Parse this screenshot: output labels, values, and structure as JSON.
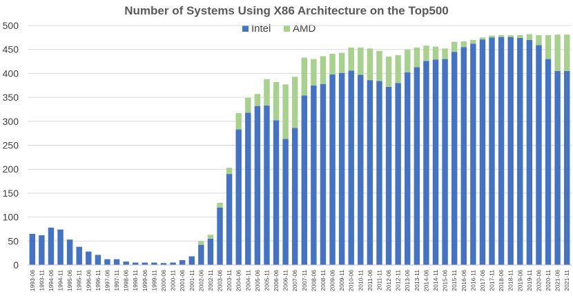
{
  "chart_data": {
    "type": "bar",
    "stacked": true,
    "title": "Number of Systems Using X86 Architecture on the Top500",
    "xlabel": "",
    "ylabel": "",
    "ylim": [
      0,
      500
    ],
    "yticks": [
      0,
      50,
      100,
      150,
      200,
      250,
      300,
      350,
      400,
      450,
      500
    ],
    "grid": true,
    "legend_position": "top-center",
    "categories": [
      "1993-06",
      "1993-11",
      "1994-06",
      "1994-11",
      "1995-06",
      "1995-11",
      "1996-06",
      "1996-11",
      "1997-06",
      "1997-11",
      "1998-06",
      "1998-11",
      "1999-06",
      "1999-11",
      "2000-06",
      "2000-11",
      "2001-06",
      "2001-11",
      "2002-06",
      "2002-11",
      "2003-06",
      "2003-11",
      "2004-06",
      "2004-11",
      "2005-06",
      "2005-11",
      "2006-06",
      "2006-11",
      "2007-06",
      "2007-11",
      "2008-06",
      "2008-11",
      "2009-06",
      "2009-11",
      "2010-06",
      "2010-11",
      "2011-06",
      "2011-11",
      "2012-06",
      "2012-11",
      "2013-06",
      "2013-11",
      "2014-06",
      "2014-11",
      "2015-06",
      "2015-11",
      "2016-06",
      "2016-11",
      "2017-06",
      "2017-11",
      "2018-06",
      "2018-11",
      "2019-06",
      "2019-11",
      "2020-06",
      "2020-11",
      "2021-06",
      "2021-11"
    ],
    "series": [
      {
        "name": "Intel",
        "color": "#4472c4",
        "values": [
          65,
          62,
          78,
          74,
          53,
          38,
          28,
          21,
          12,
          12,
          7,
          5,
          5,
          5,
          4,
          5,
          10,
          18,
          42,
          55,
          120,
          190,
          283,
          318,
          332,
          333,
          302,
          263,
          286,
          354,
          375,
          378,
          398,
          401,
          406,
          397,
          386,
          384,
          372,
          380,
          402,
          413,
          426,
          429,
          430,
          445,
          455,
          462,
          471,
          475,
          476,
          476,
          474,
          470,
          459,
          430,
          405,
          405
        ]
      },
      {
        "name": "AMD",
        "color": "#a9d18e",
        "values": [
          0,
          0,
          0,
          0,
          0,
          0,
          0,
          0,
          0,
          0,
          0,
          0,
          0,
          0,
          0,
          0,
          0,
          0,
          8,
          8,
          10,
          13,
          34,
          31,
          25,
          55,
          80,
          114,
          107,
          79,
          55,
          58,
          43,
          42,
          48,
          57,
          66,
          63,
          63,
          58,
          48,
          41,
          32,
          27,
          22,
          21,
          12,
          8,
          4,
          4,
          4,
          4,
          6,
          12,
          21,
          50,
          76,
          76
        ]
      }
    ]
  }
}
